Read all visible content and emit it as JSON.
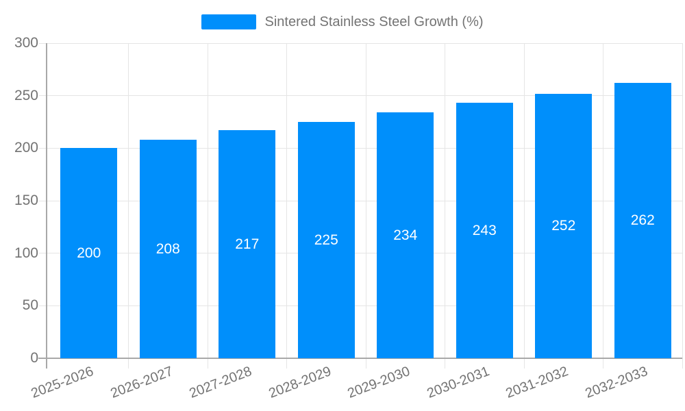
{
  "legend": {
    "label": "Sintered Stainless Steel Growth (%)"
  },
  "chart_data": {
    "type": "bar",
    "title": "",
    "series_name": "Sintered Stainless Steel Growth (%)",
    "categories": [
      "2025-2026",
      "2026-2027",
      "2027-2028",
      "2028-2029",
      "2029-2030",
      "2030-2031",
      "2031-2032",
      "2032-2033"
    ],
    "values": [
      200,
      208,
      217,
      225,
      234,
      243,
      252,
      262
    ],
    "value_labels": [
      "200",
      "208",
      "217",
      "225",
      "234",
      "243",
      "252",
      "262"
    ],
    "xlabel": "",
    "ylabel": "",
    "ylim": [
      0,
      300
    ],
    "yticks": [
      0,
      50,
      100,
      150,
      200,
      250,
      300
    ],
    "grid": true,
    "legend_position": "top",
    "colors": {
      "bar": "#008ffb",
      "value_label": "#ffffff",
      "axis_text": "#737373",
      "gridline": "#e5e5e5",
      "axis_line": "#a8a8a8",
      "tick": "#cccccc"
    }
  }
}
